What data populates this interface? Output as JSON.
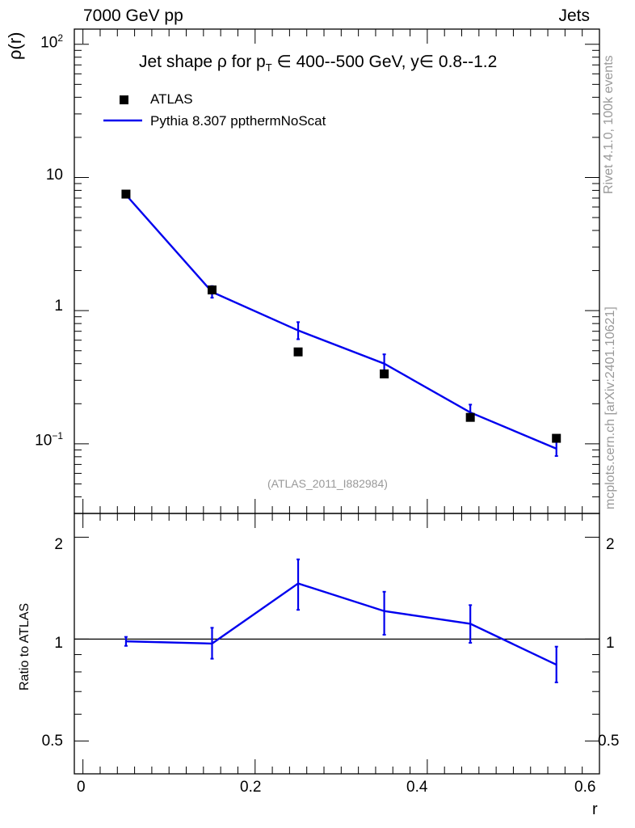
{
  "header": {
    "left": "7000 GeV pp",
    "right": "Jets"
  },
  "side_labels": {
    "rivet": "Rivet 4.1.0,  100k events",
    "mcplots": "mcplots.cern.ch [arXiv:2401.10621]"
  },
  "chart_data": [
    {
      "type": "line",
      "title": "Jet shape ρ for p_T ∈ 400--500 GeV, y∈ 0.8--1.2",
      "title_parts": {
        "pre": "Jet shape ρ for p",
        "sub": "T",
        "post": " ∈ 400--500 GeV, y∈ 0.8--1.2"
      },
      "ylabel": "ρ(r)",
      "yscale": "log",
      "ylim": [
        0.03,
        130
      ],
      "xlim": [
        -0.01,
        0.6
      ],
      "yticks": [
        {
          "value": 0.1,
          "base": "10",
          "exp": "−1"
        },
        {
          "value": 1,
          "base": "1",
          "exp": ""
        },
        {
          "value": 10,
          "base": "10",
          "exp": ""
        },
        {
          "value": 100,
          "base": "10",
          "exp": "2"
        }
      ],
      "legend": [
        {
          "name": "ATLAS",
          "marker": "square",
          "color": "#000000"
        },
        {
          "name": "Pythia 8.307 ppthermNoScat",
          "marker": "line",
          "color": "#0000ee"
        }
      ],
      "watermark": "(ATLAS_2011_I882984)",
      "x": [
        0.05,
        0.15,
        0.25,
        0.35,
        0.45,
        0.55
      ],
      "series": [
        {
          "name": "ATLAS",
          "values": [
            7.5,
            1.43,
            0.49,
            0.335,
            0.158,
            0.11
          ]
        },
        {
          "name": "Pythia 8.307 ppthermNoScat",
          "values": [
            7.4,
            1.38,
            0.71,
            0.4,
            0.172,
            0.092
          ],
          "err_up": [
            0.0,
            0.15,
            0.11,
            0.07,
            0.025,
            0.012
          ],
          "err_down": [
            0.0,
            0.13,
            0.1,
            0.06,
            0.022,
            0.011
          ]
        }
      ]
    },
    {
      "type": "line",
      "ylabel": "Ratio to ATLAS",
      "xlabel": "r",
      "yscale": "log",
      "ylim": [
        0.4,
        2.35
      ],
      "xlim": [
        -0.01,
        0.6
      ],
      "reference_line": 1,
      "yticks": [
        {
          "value": 0.5,
          "label": "0.5"
        },
        {
          "value": 1,
          "label": "1"
        },
        {
          "value": 2,
          "label": "2"
        }
      ],
      "xticks": [
        {
          "value": 0,
          "label": "0"
        },
        {
          "value": 0.2,
          "label": "0.2"
        },
        {
          "value": 0.4,
          "label": "0.4"
        },
        {
          "value": 0.6,
          "label": "0.6"
        }
      ],
      "x": [
        0.05,
        0.15,
        0.25,
        0.35,
        0.45,
        0.55
      ],
      "series": [
        {
          "name": "Pythia 8.307 ppthermNoScat",
          "values": [
            0.985,
            0.97,
            1.46,
            1.21,
            1.11,
            0.84
          ],
          "err_low": [
            0.955,
            0.875,
            1.22,
            1.03,
            0.975,
            0.745
          ],
          "err_high": [
            1.015,
            1.08,
            1.72,
            1.38,
            1.26,
            0.95
          ]
        }
      ]
    }
  ]
}
